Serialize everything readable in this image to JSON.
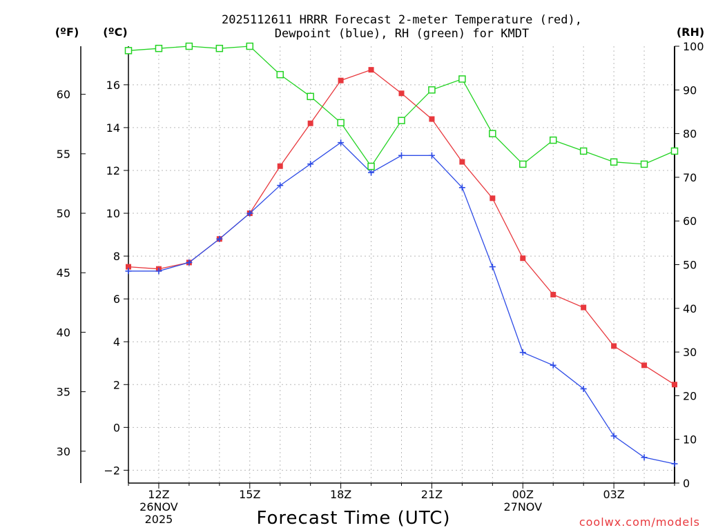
{
  "chart_data": {
    "type": "line",
    "title": [
      "2025112611 HRRR Forecast 2-meter Temperature (red),",
      "Dewpoint (blue), RH (green) for KMDT"
    ],
    "xlabel": "Forecast Time (UTC)",
    "units": {
      "fahrenheit": "(ºF)",
      "celsius": "(ºC)",
      "rh": "(RH)"
    },
    "credit": "coolwx.com/models",
    "x_hours": [
      11,
      12,
      13,
      14,
      15,
      16,
      17,
      18,
      19,
      20,
      21,
      22,
      23,
      24,
      25,
      26,
      27,
      28,
      29
    ],
    "xlim": [
      11,
      29
    ],
    "x_ticks": [
      {
        "x": 12,
        "lines": [
          "12Z",
          "26NOV",
          "2025"
        ]
      },
      {
        "x": 15,
        "lines": [
          "15Z"
        ]
      },
      {
        "x": 18,
        "lines": [
          "18Z"
        ]
      },
      {
        "x": 21,
        "lines": [
          "21Z"
        ]
      },
      {
        "x": 24,
        "lines": [
          "00Z",
          "27NOV"
        ]
      },
      {
        "x": 27,
        "lines": [
          "03Z"
        ]
      }
    ],
    "ylim_c": [
      -2.6,
      17.8
    ],
    "y_ticks_c": [
      -2,
      0,
      2,
      4,
      6,
      8,
      10,
      12,
      14,
      16
    ],
    "y_ticks_f": [
      30,
      35,
      40,
      45,
      50,
      55,
      60
    ],
    "ylim_rh": [
      0,
      100
    ],
    "y_ticks_rh": [
      0,
      10,
      20,
      30,
      40,
      50,
      60,
      70,
      80,
      90,
      100
    ],
    "series": [
      {
        "name": "Temperature",
        "axis": "celsius",
        "color": "#e8383d",
        "marker": "filled-square",
        "values": [
          7.5,
          7.4,
          7.7,
          8.8,
          10.0,
          12.2,
          14.2,
          16.2,
          16.7,
          15.6,
          14.4,
          12.4,
          10.7,
          7.9,
          6.2,
          5.6,
          3.8,
          2.9,
          2.0
        ]
      },
      {
        "name": "Dewpoint",
        "axis": "celsius",
        "color": "#2d4be6",
        "marker": "plus",
        "values": [
          7.3,
          7.3,
          7.7,
          8.8,
          10.0,
          11.3,
          12.3,
          13.3,
          11.9,
          12.7,
          12.7,
          11.2,
          7.5,
          3.5,
          2.9,
          1.8,
          -0.4,
          -1.4,
          -1.7
        ]
      },
      {
        "name": "RH",
        "axis": "rh",
        "color": "#22d322",
        "marker": "open-square",
        "values": [
          99,
          99.5,
          100,
          99.5,
          100,
          93.5,
          88.5,
          82.5,
          72.5,
          83,
          90,
          92.5,
          80,
          73,
          78.5,
          76,
          73.5,
          73,
          76
        ]
      }
    ]
  }
}
